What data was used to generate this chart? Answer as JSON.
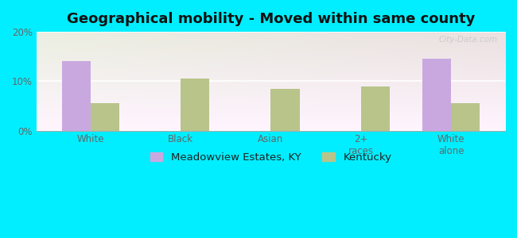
{
  "title": "Geographical mobility - Moved within same county",
  "categories": [
    "White",
    "Black",
    "Asian",
    "2+\nraces",
    "White\nalone"
  ],
  "meadowview_values": [
    14.0,
    0.0,
    0.0,
    0.0,
    14.5
  ],
  "kentucky_values": [
    5.5,
    10.5,
    8.5,
    9.0,
    5.5
  ],
  "meadowview_color": "#c9a8e0",
  "kentucky_color": "#b8c48a",
  "background_color": "#e8f0d8",
  "cyan_background": "#00eeff",
  "ylim": [
    0,
    20
  ],
  "yticks": [
    0,
    10,
    20
  ],
  "ytick_labels": [
    "0%",
    "10%",
    "20%"
  ],
  "bar_width": 0.32,
  "legend_labels": [
    "Meadowview Estates, KY",
    "Kentucky"
  ],
  "title_fontsize": 13,
  "tick_fontsize": 8.5,
  "legend_fontsize": 9.5
}
